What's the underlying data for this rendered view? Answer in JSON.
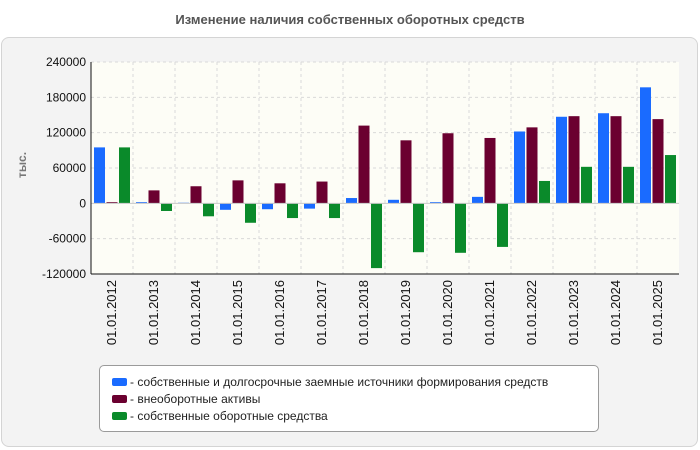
{
  "chart_data": {
    "type": "bar",
    "title": "Изменение наличия собственных оборотных средств",
    "ylabel": "тыс.",
    "xlabel": "",
    "ylim": [
      -120000,
      240000
    ],
    "yticks": [
      240000,
      180000,
      120000,
      60000,
      0,
      -60000,
      -120000
    ],
    "grid": true,
    "legend_position": "bottom",
    "categories": [
      "01.01.2012",
      "01.01.2013",
      "01.01.2014",
      "01.01.2015",
      "01.01.2016",
      "01.01.2017",
      "01.01.2018",
      "01.01.2019",
      "01.01.2020",
      "01.01.2021",
      "01.01.2022",
      "01.01.2023",
      "01.01.2024",
      "01.01.2025"
    ],
    "series": [
      {
        "name": "- собственные и долгосрочные заемные источники формирования средств",
        "color": "#1a6bff",
        "values": [
          95000,
          2000,
          1000,
          -11000,
          -10000,
          -9000,
          9000,
          6000,
          2000,
          11000,
          122000,
          147000,
          153000,
          197000
        ]
      },
      {
        "name": "- внеоборотные активы",
        "color": "#6b0030",
        "values": [
          2000,
          22000,
          29000,
          39000,
          34000,
          37000,
          132000,
          107000,
          119000,
          111000,
          129000,
          148000,
          148000,
          143000
        ]
      },
      {
        "name": "- собственные оборотные средства",
        "color": "#0a8a2a",
        "values": [
          95000,
          -13000,
          -22000,
          -33000,
          -25000,
          -25000,
          -110000,
          -83000,
          -84000,
          -74000,
          38000,
          62000,
          62000,
          82000
        ]
      }
    ]
  }
}
